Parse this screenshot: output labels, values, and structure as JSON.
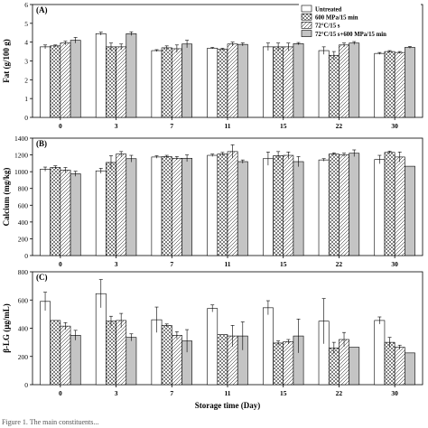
{
  "figure_caption": "Figure 1. The main constituents...",
  "colors": {
    "untreated": "#ffffff",
    "hpp": "#ffffff",
    "heat": "#ffffff",
    "combined": "#c4c4c4",
    "axis": "#000000"
  },
  "legend": {
    "placement": "top-right",
    "items": [
      {
        "label": "Untreated",
        "pattern": "solid-white"
      },
      {
        "label": "600 MPa/15 min",
        "pattern": "crosshatch"
      },
      {
        "label": "72°C/15 s",
        "pattern": "diagonal"
      },
      {
        "label": "72°C/15 s+600 MPa/15 min",
        "pattern": "solid-gray"
      }
    ]
  },
  "chart_data": [
    {
      "type": "bar",
      "panel_label": "(A)",
      "ylabel": "Fat (g/100 g)",
      "xlabel": "",
      "categories": [
        "0",
        "3",
        "7",
        "11",
        "15",
        "22",
        "30"
      ],
      "ylim": [
        0,
        6
      ],
      "yticks": [
        "0",
        "1",
        "2",
        "3",
        "4",
        "5",
        "6"
      ],
      "grid": false,
      "series": [
        {
          "name": "Untreated",
          "values": [
            3.75,
            4.45,
            3.55,
            3.68,
            3.75,
            3.55,
            3.4
          ],
          "errors": [
            0.1,
            0.08,
            0.05,
            0.04,
            0.2,
            0.2,
            0.05
          ]
        },
        {
          "name": "600 MPa/15 min",
          "values": [
            3.8,
            3.75,
            3.7,
            3.62,
            3.75,
            3.3,
            3.5
          ],
          "errors": [
            0.05,
            0.2,
            0.1,
            0.05,
            0.2,
            0.2,
            0.05
          ]
        },
        {
          "name": "72°C/15 s",
          "values": [
            3.95,
            3.75,
            3.65,
            3.9,
            3.75,
            3.85,
            3.45
          ],
          "errors": [
            0.1,
            0.15,
            0.2,
            0.1,
            0.2,
            0.1,
            0.05
          ]
        },
        {
          "name": "72°C/15 s+600 MPa/15 min",
          "values": [
            4.1,
            4.45,
            3.9,
            3.88,
            3.92,
            3.95,
            3.72
          ],
          "errors": [
            0.15,
            0.1,
            0.2,
            0.08,
            0.06,
            0.08,
            0.05
          ]
        }
      ]
    },
    {
      "type": "bar",
      "panel_label": "(B)",
      "ylabel": "Calcium (mg/kg)",
      "xlabel": "",
      "categories": [
        "0",
        "3",
        "7",
        "11",
        "15",
        "22",
        "30"
      ],
      "ylim": [
        0,
        1400
      ],
      "yticks": [
        "0",
        "200",
        "400",
        "600",
        "800",
        "1000",
        "1200",
        "1400"
      ],
      "grid": false,
      "series": [
        {
          "name": "Untreated",
          "values": [
            1030,
            1010,
            1175,
            1195,
            1155,
            1140,
            1145
          ],
          "errors": [
            25,
            30,
            15,
            15,
            80,
            15,
            50
          ]
        },
        {
          "name": "600 MPa/15 min",
          "values": [
            1050,
            1110,
            1180,
            1210,
            1190,
            1210,
            1230
          ],
          "errors": [
            20,
            80,
            15,
            20,
            50,
            15,
            15
          ]
        },
        {
          "name": "72°C/15 s",
          "values": [
            1020,
            1210,
            1160,
            1240,
            1195,
            1200,
            1175
          ],
          "errors": [
            30,
            30,
            20,
            80,
            40,
            20,
            60
          ]
        },
        {
          "name": "72°C/15 s+600 MPa/15 min",
          "values": [
            975,
            1155,
            1160,
            1120,
            1120,
            1220,
            1065
          ],
          "errors": [
            30,
            40,
            40,
            20,
            60,
            40,
            0
          ]
        }
      ]
    },
    {
      "type": "bar",
      "panel_label": "(C)",
      "ylabel": "β-LG (μg/mL)",
      "xlabel": "Storage time (Day)",
      "categories": [
        "0",
        "3",
        "7",
        "11",
        "15",
        "22",
        "30"
      ],
      "ylim": [
        0,
        800
      ],
      "yticks": [
        "0",
        "200",
        "400",
        "600",
        "800"
      ],
      "grid": false,
      "series": [
        {
          "name": "Untreated",
          "values": [
            590,
            645,
            460,
            540,
            545,
            450,
            455
          ],
          "errors": [
            65,
            100,
            90,
            25,
            50,
            160,
            25
          ]
        },
        {
          "name": "600 MPa/15 min",
          "values": [
            455,
            450,
            420,
            355,
            295,
            260,
            300
          ],
          "errors": [
            0,
            35,
            10,
            0,
            15,
            40,
            35
          ]
        },
        {
          "name": "72°C/15 s",
          "values": [
            415,
            455,
            350,
            345,
            305,
            320,
            265
          ],
          "errors": [
            25,
            50,
            25,
            75,
            15,
            50,
            15
          ]
        },
        {
          "name": "72°C/15 s+600 MPa/15 min",
          "values": [
            350,
            335,
            310,
            345,
            345,
            265,
            225
          ],
          "errors": [
            35,
            25,
            80,
            100,
            120,
            0,
            0
          ]
        }
      ]
    }
  ]
}
